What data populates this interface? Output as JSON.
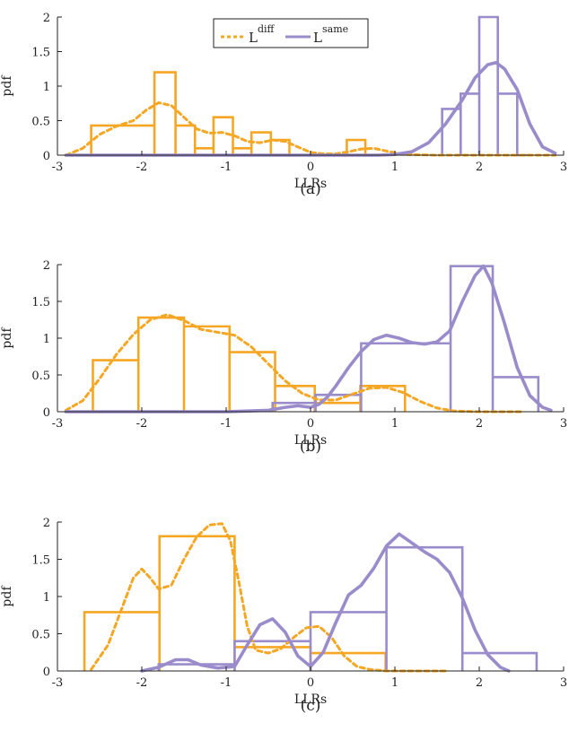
{
  "colors": {
    "diff": "#F5A623",
    "same": "#9A8CCB",
    "axis": "#222222"
  },
  "legend": {
    "diff_base": "L",
    "diff_sup": "diff",
    "same_base": "L",
    "same_sup": "same"
  },
  "chart_data": [
    {
      "type": "line",
      "caption": "(a)",
      "xlabel": "LLRs",
      "ylabel": "pdf",
      "xlim": [
        -3,
        3
      ],
      "ylim": [
        0,
        2
      ],
      "xticks": [
        "-3",
        "-2",
        "-1",
        "0",
        "1",
        "2",
        "3"
      ],
      "yticks": [
        "0",
        "0.5",
        "1",
        "1.5",
        "2"
      ],
      "legend": "top-center",
      "histograms": {
        "diff": {
          "edges": [
            -2.6,
            -1.85,
            -1.6,
            -1.37,
            -1.15,
            -0.92,
            -0.7,
            -0.47,
            -0.25,
            -0.02,
            0.2,
            0.43,
            0.65,
            0.88
          ],
          "values": [
            0.43,
            1.2,
            0.43,
            0.1,
            0.55,
            0.1,
            0.33,
            0.22,
            0.0,
            0.0,
            0.0,
            0.22,
            0.0
          ]
        },
        "same": {
          "edges": [
            1.56,
            1.78,
            2.0,
            2.22,
            2.45,
            2.56
          ],
          "values": [
            0.67,
            0.89,
            2.0,
            0.89,
            0.0
          ]
        }
      },
      "series": [
        {
          "name": "L diff",
          "x": [
            -2.9,
            -2.7,
            -2.5,
            -2.3,
            -2.1,
            -1.95,
            -1.8,
            -1.65,
            -1.5,
            -1.35,
            -1.2,
            -1.05,
            -0.9,
            -0.75,
            -0.6,
            -0.45,
            -0.3,
            -0.15,
            0.0,
            0.15,
            0.3,
            0.45,
            0.6,
            0.75,
            0.9,
            1.1,
            1.5,
            2.0,
            2.5,
            2.9
          ],
          "y": [
            0.0,
            0.1,
            0.3,
            0.42,
            0.5,
            0.65,
            0.76,
            0.72,
            0.55,
            0.38,
            0.32,
            0.33,
            0.28,
            0.2,
            0.18,
            0.22,
            0.2,
            0.12,
            0.04,
            0.02,
            0.02,
            0.05,
            0.09,
            0.1,
            0.06,
            0.01,
            0.0,
            0.0,
            0.0,
            0.0
          ]
        },
        {
          "name": "L same",
          "x": [
            -2.9,
            0.8,
            1.0,
            1.2,
            1.4,
            1.6,
            1.8,
            1.95,
            2.1,
            2.2,
            2.3,
            2.45,
            2.6,
            2.75,
            2.9
          ],
          "y": [
            0.0,
            0.0,
            0.01,
            0.05,
            0.18,
            0.45,
            0.8,
            1.12,
            1.31,
            1.34,
            1.25,
            0.95,
            0.45,
            0.12,
            0.03
          ]
        }
      ]
    },
    {
      "type": "line",
      "caption": "(b)",
      "xlabel": "LLRs",
      "ylabel": "pdf",
      "xlim": [
        -3,
        3
      ],
      "ylim": [
        0,
        2
      ],
      "xticks": [
        "-3",
        "-2",
        "-1",
        "0",
        "1",
        "2",
        "3"
      ],
      "yticks": [
        "0",
        "0.5",
        "1",
        "1.5",
        "2"
      ],
      "histograms": {
        "diff": {
          "edges": [
            -2.58,
            -2.04,
            -1.5,
            -0.96,
            -0.42,
            0.05,
            0.59,
            1.12
          ],
          "values": [
            0.7,
            1.28,
            1.16,
            0.81,
            0.35,
            0.12,
            0.35
          ]
        },
        "same": {
          "edges": [
            -0.45,
            0.06,
            0.6,
            1.66,
            2.16,
            2.7
          ],
          "values": [
            0.12,
            0.23,
            0.93,
            1.98,
            0.47
          ]
        }
      },
      "series": [
        {
          "name": "L diff",
          "x": [
            -2.9,
            -2.7,
            -2.5,
            -2.3,
            -2.1,
            -1.9,
            -1.7,
            -1.5,
            -1.3,
            -1.1,
            -0.9,
            -0.7,
            -0.5,
            -0.3,
            -0.1,
            0.1,
            0.3,
            0.5,
            0.7,
            0.9,
            1.1,
            1.3,
            1.5,
            1.7,
            2.0,
            2.5
          ],
          "y": [
            0.02,
            0.15,
            0.45,
            0.78,
            1.05,
            1.25,
            1.32,
            1.24,
            1.12,
            1.08,
            1.04,
            0.88,
            0.65,
            0.42,
            0.25,
            0.16,
            0.16,
            0.24,
            0.32,
            0.33,
            0.26,
            0.14,
            0.05,
            0.01,
            0.0,
            0.0
          ]
        },
        {
          "name": "L same",
          "x": [
            -2.9,
            -1.0,
            -0.5,
            -0.3,
            -0.15,
            0.0,
            0.1,
            0.2,
            0.3,
            0.45,
            0.6,
            0.75,
            0.9,
            1.05,
            1.2,
            1.35,
            1.5,
            1.65,
            1.8,
            1.95,
            2.05,
            2.15,
            2.3,
            2.45,
            2.6,
            2.75,
            2.85
          ],
          "y": [
            0.0,
            0.0,
            0.02,
            0.06,
            0.08,
            0.06,
            0.1,
            0.2,
            0.35,
            0.6,
            0.82,
            0.98,
            1.04,
            1.0,
            0.94,
            0.92,
            0.95,
            1.1,
            1.5,
            1.85,
            1.98,
            1.75,
            1.2,
            0.6,
            0.22,
            0.06,
            0.02
          ]
        }
      ]
    },
    {
      "type": "line",
      "caption": "(c)",
      "xlabel": "LLRs",
      "ylabel": "pdf",
      "xlim": [
        -3,
        3
      ],
      "ylim": [
        0,
        2
      ],
      "xticks": [
        "-3",
        "-2",
        "-1",
        "0",
        "1",
        "2",
        "3"
      ],
      "yticks": [
        "0",
        "0.5",
        "1",
        "1.5",
        "2"
      ],
      "histograms": {
        "diff": {
          "edges": [
            -2.68,
            -1.79,
            -0.9,
            0.0,
            0.89
          ],
          "values": [
            0.79,
            1.81,
            0.32,
            0.24
          ]
        },
        "same": {
          "edges": [
            -1.8,
            -0.9,
            0.0,
            0.9,
            1.8,
            2.68
          ],
          "values": [
            0.09,
            0.4,
            0.79,
            1.66,
            0.24
          ]
        }
      },
      "series": [
        {
          "name": "L diff",
          "x": [
            -2.6,
            -2.4,
            -2.2,
            -2.1,
            -2.0,
            -1.9,
            -1.8,
            -1.65,
            -1.5,
            -1.35,
            -1.2,
            -1.05,
            -0.95,
            -0.85,
            -0.75,
            -0.65,
            -0.5,
            -0.35,
            -0.2,
            -0.05,
            0.1,
            0.25,
            0.4,
            0.55,
            0.7,
            0.9,
            1.2,
            1.6
          ],
          "y": [
            0.02,
            0.35,
            0.95,
            1.25,
            1.37,
            1.25,
            1.1,
            1.15,
            1.5,
            1.8,
            1.96,
            1.98,
            1.75,
            1.2,
            0.6,
            0.28,
            0.24,
            0.3,
            0.45,
            0.58,
            0.6,
            0.45,
            0.2,
            0.06,
            0.02,
            0.0,
            0.0,
            0.0
          ]
        },
        {
          "name": "L same",
          "x": [
            -2.0,
            -1.8,
            -1.6,
            -1.45,
            -1.3,
            -1.1,
            -0.9,
            -0.75,
            -0.6,
            -0.45,
            -0.3,
            -0.15,
            0.0,
            0.15,
            0.3,
            0.45,
            0.6,
            0.75,
            0.9,
            1.05,
            1.2,
            1.35,
            1.5,
            1.65,
            1.8,
            1.95,
            2.1,
            2.25,
            2.35
          ],
          "y": [
            0.0,
            0.05,
            0.15,
            0.15,
            0.08,
            0.04,
            0.06,
            0.35,
            0.62,
            0.7,
            0.52,
            0.2,
            0.06,
            0.25,
            0.65,
            1.02,
            1.15,
            1.38,
            1.68,
            1.84,
            1.72,
            1.6,
            1.5,
            1.32,
            0.98,
            0.55,
            0.22,
            0.05,
            0.0
          ]
        }
      ]
    }
  ]
}
